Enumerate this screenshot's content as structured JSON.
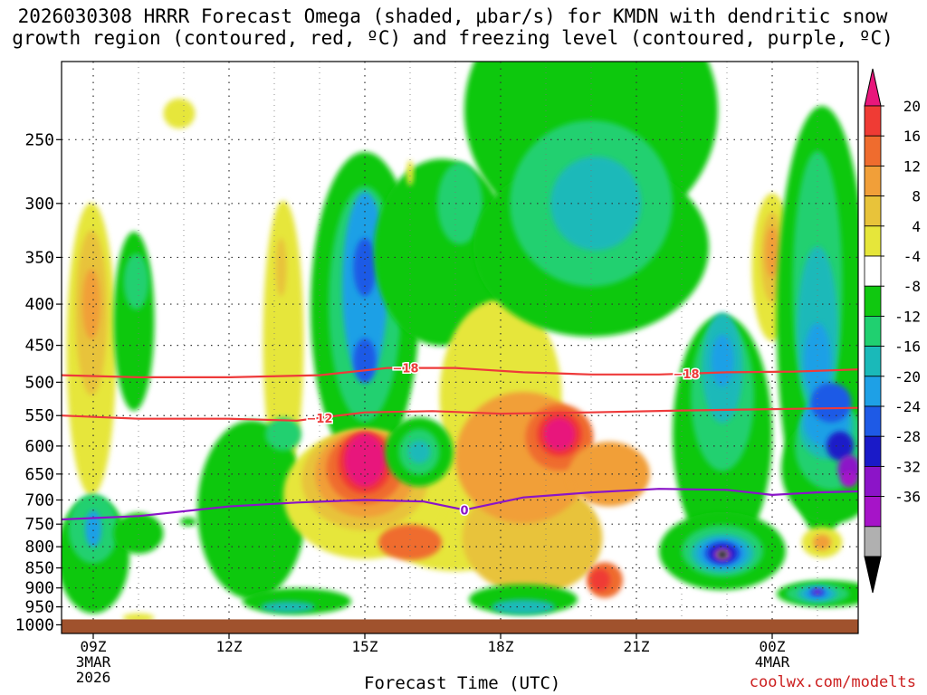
{
  "title_line1": "2026030308 HRRR Forecast Omega (shaded, μbar/s) for KMDN with dendritic snow",
  "title_line2": "growth region (contoured, red, ºC) and freezing level (contoured, purple, ºC)",
  "watermark": "coolwx.com/modelts",
  "chart_data": {
    "type": "heatmap",
    "title": "2026030308 HRRR Forecast Omega (shaded, μbar/s) for KMDN with dendritic snow growth region (contoured, red, ºC) and freezing level (contoured, purple, ºC)",
    "xlabel": "Forecast Time (UTC)",
    "ylabel": "",
    "xlim": [
      8.3,
      25.9
    ],
    "ylim": [
      1025,
      200
    ],
    "y_axis": "pressure (hPa), log scale, inverted",
    "x_ticks": [
      {
        "hour": 9,
        "label": "09Z",
        "sub1": "3MAR",
        "sub2": "2026"
      },
      {
        "hour": 12,
        "label": "12Z",
        "sub1": "",
        "sub2": ""
      },
      {
        "hour": 15,
        "label": "15Z",
        "sub1": "",
        "sub2": ""
      },
      {
        "hour": 18,
        "label": "18Z",
        "sub1": "",
        "sub2": ""
      },
      {
        "hour": 21,
        "label": "21Z",
        "sub1": "",
        "sub2": ""
      },
      {
        "hour": 24,
        "label": "00Z",
        "sub1": "4MAR",
        "sub2": ""
      }
    ],
    "y_ticks": [
      250,
      300,
      350,
      400,
      450,
      500,
      550,
      600,
      650,
      700,
      750,
      800,
      850,
      900,
      950,
      1000
    ],
    "colorbar": {
      "labels": [
        20,
        16,
        12,
        8,
        4,
        -4,
        -8,
        -12,
        -16,
        -20,
        -24,
        -28,
        -32,
        -36
      ],
      "colors": [
        "#e8177b",
        "#ef3b34",
        "#ef6c2e",
        "#f19f39",
        "#e8c33a",
        "#e6e63a",
        "#ffffff",
        "#10c810",
        "#20d070",
        "#1ab9b9",
        "#1ea0e6",
        "#1e5ae6",
        "#1a1ac8",
        "#8c14c8",
        "#a614c8",
        "#b0b0b0",
        "#000000"
      ]
    },
    "omega_features": [
      {
        "hour": 9.0,
        "p": 400,
        "value": 12
      },
      {
        "hour": 15.1,
        "p": 630,
        "value": 20
      },
      {
        "hour": 19.3,
        "p": 580,
        "value": 20
      },
      {
        "hour": 20.3,
        "p": 880,
        "value": 16
      },
      {
        "hour": 15.0,
        "p": 360,
        "value": -20
      },
      {
        "hour": 15.0,
        "p": 470,
        "value": -20
      },
      {
        "hour": 22.9,
        "p": 820,
        "value": -36
      },
      {
        "hour": 25.0,
        "p": 500,
        "value": -24
      },
      {
        "hour": 25.6,
        "p": 650,
        "value": -28
      },
      {
        "hour": 25.0,
        "p": 910,
        "value": -28
      },
      {
        "hour": 24.0,
        "p": 360,
        "value": 12
      },
      {
        "hour": 25.1,
        "p": 790,
        "value": 12
      }
    ],
    "series": [
      {
        "name": "-18",
        "color": "#ee3a3a",
        "x": [
          8.3,
          10,
          12,
          14,
          15.5,
          17,
          18.5,
          20,
          21.5,
          23,
          24.5,
          25.9
        ],
        "y": [
          490,
          493,
          493,
          490,
          480,
          480,
          486,
          489,
          489,
          486,
          485,
          482
        ],
        "labels": [
          {
            "hour": 15.9,
            "text": "−18"
          },
          {
            "hour": 22.1,
            "text": "−18"
          }
        ]
      },
      {
        "name": "-12",
        "color": "#ee3a3a",
        "x": [
          8.3,
          10,
          12,
          13.5,
          15,
          16.5,
          18,
          20,
          22,
          24,
          25.9
        ],
        "y": [
          550,
          555,
          555,
          558,
          545,
          543,
          547,
          545,
          542,
          540,
          538
        ],
        "labels": [
          {
            "hour": 14.0,
            "text": "−12"
          }
        ]
      },
      {
        "name": "0",
        "color": "#8a14c8",
        "x": [
          8.3,
          10,
          12,
          13.5,
          15,
          16.3,
          17.2,
          18.5,
          20,
          21.5,
          23,
          24,
          25,
          25.9
        ],
        "y": [
          740,
          733,
          713,
          705,
          700,
          703,
          720,
          695,
          685,
          678,
          680,
          690,
          685,
          683
        ],
        "labels": [
          {
            "hour": 17.2,
            "text": "0"
          }
        ]
      }
    ]
  }
}
